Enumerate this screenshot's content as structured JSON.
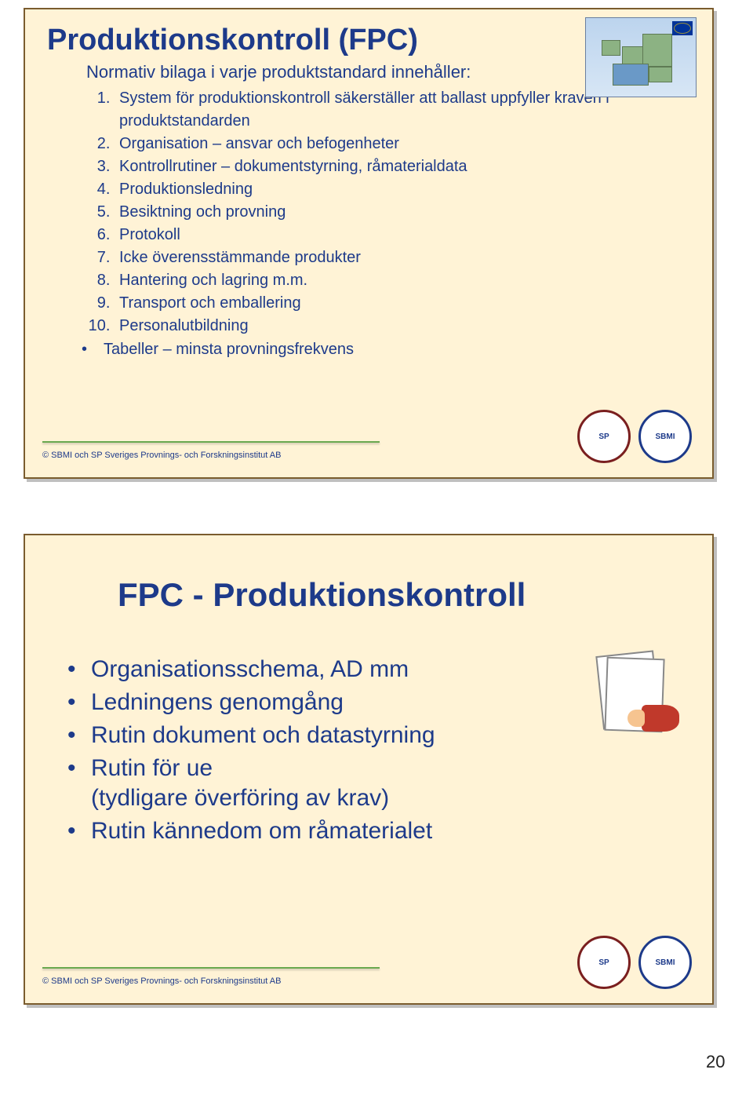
{
  "slide1": {
    "title": "Produktionskontroll (FPC)",
    "subtitle": "Normativ bilaga i varje produktstandard innehåller:",
    "items": [
      "System för produktionskontroll säkerställer att ballast uppfyller kraven i produktstandarden",
      "Organisation – ansvar och befogenheter",
      "Kontrollrutiner – dokumentstyrning, råmaterialdata",
      "Produktionsledning",
      "Besiktning och provning",
      "Protokoll",
      "Icke överensstämmande produkter",
      "Hantering och lagring m.m.",
      "Transport och emballering",
      "Personalutbildning"
    ],
    "bullet": "Tabeller – minsta provningsfrekvens",
    "copyright": "© SBMI och SP Sveriges Provnings- och Forskningsinstitut AB",
    "logo1": "SP",
    "logo2": "SBMI"
  },
  "slide2": {
    "title": "FPC - Produktionskontroll",
    "items": [
      {
        "text": "Organisationsschema, AD mm"
      },
      {
        "text": "Ledningens genomgång"
      },
      {
        "text": "Rutin dokument och datastyrning"
      },
      {
        "text": "Rutin för ue",
        "sub": "(tydligare överföring av krav)"
      },
      {
        "text": "Rutin kännedom om råmaterialet"
      }
    ],
    "copyright": "© SBMI och SP Sveriges Provnings- och Forskningsinstitut AB",
    "logo1": "SP",
    "logo2": "SBMI"
  },
  "page_number": "20",
  "colors": {
    "slide_bg": "#fff3d6",
    "text_blue": "#1d3a8a",
    "line_green": "#6aa84f",
    "border_brown": "#7a5c2e"
  }
}
